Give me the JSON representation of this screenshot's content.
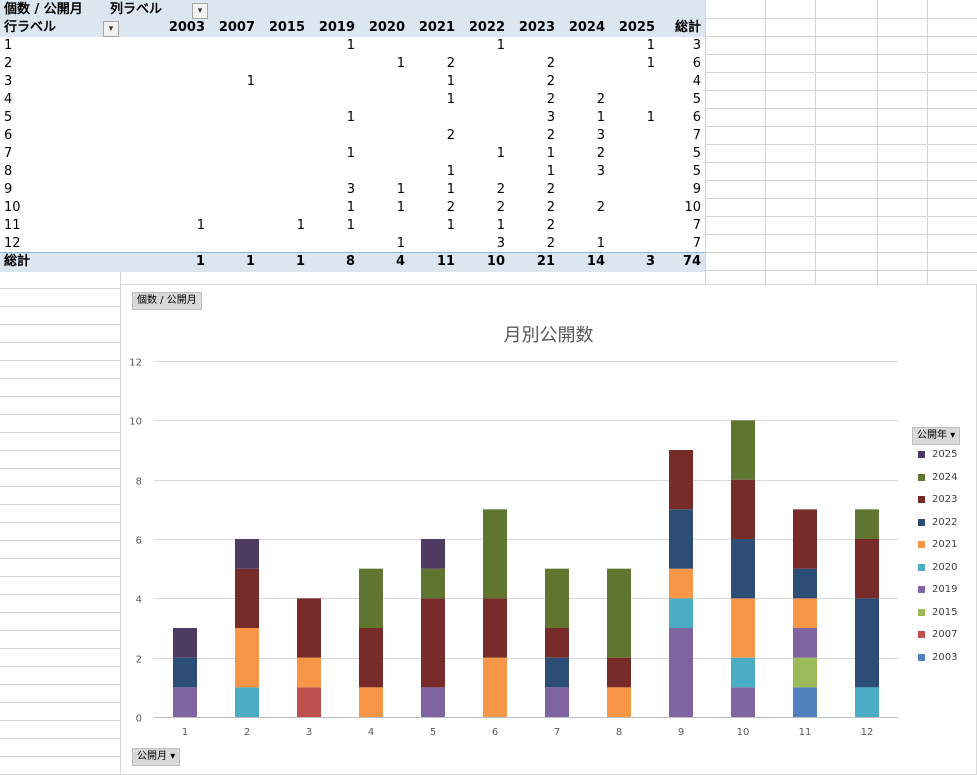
{
  "pivot": {
    "title": "個数 / 公開月",
    "col_label": "列ラベル",
    "row_label": "行ラベル",
    "years": [
      "2003",
      "2007",
      "2015",
      "2019",
      "2020",
      "2021",
      "2022",
      "2023",
      "2024",
      "2025"
    ],
    "total_label": "総計",
    "rows": [
      {
        "month": "1",
        "cells": [
          "",
          "",
          "",
          "1",
          "",
          "",
          "1",
          "",
          "",
          "1"
        ],
        "total": "3"
      },
      {
        "month": "2",
        "cells": [
          "",
          "",
          "",
          "",
          "1",
          "2",
          "",
          "2",
          "",
          "1"
        ],
        "total": "6"
      },
      {
        "month": "3",
        "cells": [
          "",
          "1",
          "",
          "",
          "",
          "1",
          "",
          "2",
          "",
          ""
        ],
        "total": "4"
      },
      {
        "month": "4",
        "cells": [
          "",
          "",
          "",
          "",
          "",
          "1",
          "",
          "2",
          "2",
          ""
        ],
        "total": "5"
      },
      {
        "month": "5",
        "cells": [
          "",
          "",
          "",
          "1",
          "",
          "",
          "",
          "3",
          "1",
          "1"
        ],
        "total": "6"
      },
      {
        "month": "6",
        "cells": [
          "",
          "",
          "",
          "",
          "",
          "2",
          "",
          "2",
          "3",
          ""
        ],
        "total": "7"
      },
      {
        "month": "7",
        "cells": [
          "",
          "",
          "",
          "1",
          "",
          "",
          "1",
          "1",
          "2",
          ""
        ],
        "total": "5"
      },
      {
        "month": "8",
        "cells": [
          "",
          "",
          "",
          "",
          "",
          "1",
          "",
          "1",
          "3",
          ""
        ],
        "total": "5"
      },
      {
        "month": "9",
        "cells": [
          "",
          "",
          "",
          "3",
          "1",
          "1",
          "2",
          "2",
          "",
          ""
        ],
        "total": "9"
      },
      {
        "month": "10",
        "cells": [
          "",
          "",
          "",
          "1",
          "1",
          "2",
          "2",
          "2",
          "2",
          ""
        ],
        "total": "10"
      },
      {
        "month": "11",
        "cells": [
          "1",
          "",
          "1",
          "1",
          "",
          "1",
          "1",
          "2",
          "",
          ""
        ],
        "total": "7"
      },
      {
        "month": "12",
        "cells": [
          "",
          "",
          "",
          "",
          "1",
          "",
          "3",
          "2",
          "1",
          ""
        ],
        "total": "7"
      }
    ],
    "grand_totals": [
      "1",
      "1",
      "1",
      "8",
      "4",
      "11",
      "10",
      "21",
      "14",
      "3"
    ],
    "grand_total": "74"
  },
  "chart_data": {
    "type": "bar",
    "stacked": true,
    "title": "月別公開数",
    "field_button_values": "個数 / 公開月",
    "field_button_axis": "公開月",
    "legend_title": "公開年",
    "categories": [
      "1",
      "2",
      "3",
      "4",
      "5",
      "6",
      "7",
      "8",
      "9",
      "10",
      "11",
      "12"
    ],
    "ylim": [
      0,
      12
    ],
    "yticks": [
      0,
      2,
      4,
      6,
      8,
      10,
      12
    ],
    "grid": true,
    "legend_position": "right",
    "series": [
      {
        "name": "2003",
        "color": "#4f81bd",
        "values": [
          0,
          0,
          0,
          0,
          0,
          0,
          0,
          0,
          0,
          0,
          1,
          0
        ]
      },
      {
        "name": "2007",
        "color": "#c0504d",
        "values": [
          0,
          0,
          1,
          0,
          0,
          0,
          0,
          0,
          0,
          0,
          0,
          0
        ]
      },
      {
        "name": "2015",
        "color": "#9bbb59",
        "values": [
          0,
          0,
          0,
          0,
          0,
          0,
          0,
          0,
          0,
          0,
          1,
          0
        ]
      },
      {
        "name": "2019",
        "color": "#8064a2",
        "values": [
          1,
          0,
          0,
          0,
          1,
          0,
          1,
          0,
          3,
          1,
          1,
          0
        ]
      },
      {
        "name": "2020",
        "color": "#4bacc6",
        "values": [
          0,
          1,
          0,
          0,
          0,
          0,
          0,
          0,
          1,
          1,
          0,
          1
        ]
      },
      {
        "name": "2021",
        "color": "#f79646",
        "values": [
          0,
          2,
          1,
          1,
          0,
          2,
          0,
          1,
          1,
          2,
          1,
          0
        ]
      },
      {
        "name": "2022",
        "color": "#2c4d75",
        "values": [
          1,
          0,
          0,
          0,
          0,
          0,
          1,
          0,
          2,
          2,
          1,
          3
        ]
      },
      {
        "name": "2023",
        "color": "#772c2a",
        "values": [
          0,
          2,
          2,
          2,
          3,
          2,
          1,
          1,
          2,
          2,
          2,
          2
        ]
      },
      {
        "name": "2024",
        "color": "#5f7530",
        "values": [
          0,
          0,
          0,
          2,
          1,
          3,
          2,
          3,
          0,
          2,
          0,
          1
        ]
      },
      {
        "name": "2025",
        "color": "#4d3b62",
        "values": [
          1,
          1,
          0,
          0,
          1,
          0,
          0,
          0,
          0,
          0,
          0,
          0
        ]
      }
    ]
  }
}
